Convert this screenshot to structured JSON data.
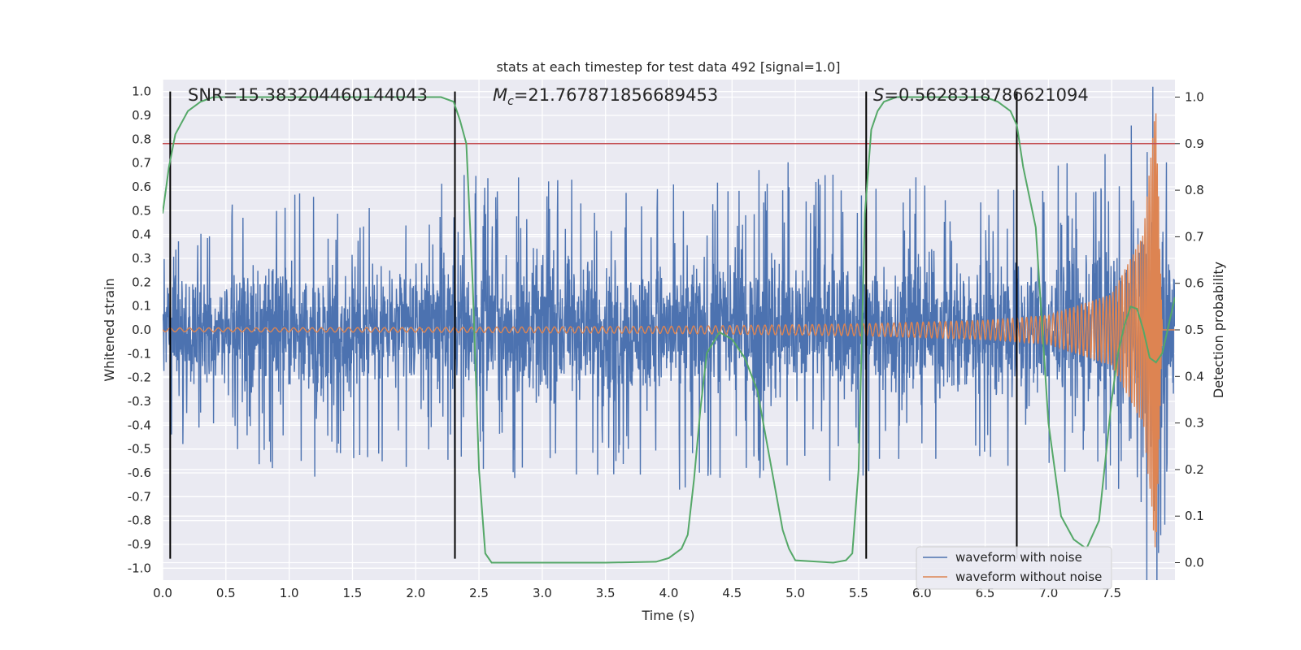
{
  "chart_data": {
    "type": "line",
    "title": "stats at each timestep for test data 492 [signal=1.0]",
    "xlabel": "Time (s)",
    "ylabel_left": "Whitened strain",
    "ylabel_right": "Detection probability",
    "xlim": [
      0.0,
      8.0
    ],
    "ylim_left": [
      -1.05,
      1.05
    ],
    "ylim_right": [
      -0.0375,
      1.0375
    ],
    "x_ticks": [
      "0.0",
      "0.5",
      "1.0",
      "1.5",
      "2.0",
      "2.5",
      "3.0",
      "3.5",
      "4.0",
      "4.5",
      "5.0",
      "5.5",
      "6.0",
      "6.5",
      "7.0",
      "7.5"
    ],
    "y_ticks_left": [
      "1.0",
      "0.9",
      "0.8",
      "0.7",
      "0.6",
      "0.5",
      "0.4",
      "0.3",
      "0.2",
      "0.1",
      "0.0",
      "-0.1",
      "-0.2",
      "-0.3",
      "-0.4",
      "-0.5",
      "-0.6",
      "-0.7",
      "-0.8",
      "-0.9",
      "-1.0"
    ],
    "y_ticks_right": [
      "1.0",
      "0.9",
      "0.8",
      "0.7",
      "0.6",
      "0.5",
      "0.4",
      "0.3",
      "0.2",
      "0.1",
      "0.0"
    ],
    "grid": true,
    "legend_position": "bottom-right",
    "annotations": {
      "snr": "SNR=15.383204460144043",
      "mc_symbol": "M",
      "mc_subscript": "c",
      "mc_value": "=21.767871856689453",
      "s_symbol": "S",
      "s_value": "=0.5628318786621094"
    },
    "threshold_right": 0.9,
    "vertical_markers_s": [
      0.06,
      2.31,
      5.56,
      6.75
    ],
    "series": [
      {
        "name": "waveform with noise",
        "color": "#4c72b0",
        "description": "noisy whitened strain, envelope approx",
        "envelope_upper": [
          [
            0.0,
            0.32
          ],
          [
            0.5,
            0.42
          ],
          [
            1.0,
            0.45
          ],
          [
            1.5,
            0.46
          ],
          [
            2.0,
            0.5
          ],
          [
            2.5,
            0.5
          ],
          [
            3.0,
            0.5
          ],
          [
            3.5,
            0.48
          ],
          [
            4.0,
            0.48
          ],
          [
            4.5,
            0.5
          ],
          [
            5.0,
            0.55
          ],
          [
            5.5,
            0.5
          ],
          [
            6.0,
            0.5
          ],
          [
            6.5,
            0.5
          ],
          [
            7.0,
            0.52
          ],
          [
            7.5,
            0.6
          ],
          [
            7.85,
            1.0
          ],
          [
            8.0,
            0.4
          ]
        ],
        "envelope_lower": [
          [
            0.0,
            -0.35
          ],
          [
            0.5,
            -0.42
          ],
          [
            1.0,
            -0.48
          ],
          [
            1.5,
            -0.5
          ],
          [
            2.0,
            -0.45
          ],
          [
            2.5,
            -0.45
          ],
          [
            3.0,
            -0.5
          ],
          [
            3.5,
            -0.47
          ],
          [
            4.0,
            -0.55
          ],
          [
            4.5,
            -0.5
          ],
          [
            5.0,
            -0.5
          ],
          [
            5.5,
            -0.48
          ],
          [
            6.0,
            -0.48
          ],
          [
            6.5,
            -0.45
          ],
          [
            7.0,
            -0.5
          ],
          [
            7.5,
            -0.55
          ],
          [
            7.85,
            -0.96
          ],
          [
            8.0,
            -0.35
          ]
        ]
      },
      {
        "name": "waveform without noise",
        "color": "#dd8452",
        "description": "chirp signal, amplitude grows toward merger near 7.85 s",
        "amplitude_envelope": [
          [
            0.0,
            0.008
          ],
          [
            2.0,
            0.01
          ],
          [
            4.0,
            0.015
          ],
          [
            5.5,
            0.025
          ],
          [
            6.5,
            0.04
          ],
          [
            7.0,
            0.06
          ],
          [
            7.5,
            0.15
          ],
          [
            7.75,
            0.4
          ],
          [
            7.85,
            0.95
          ],
          [
            7.9,
            0.0
          ],
          [
            8.0,
            0.0
          ]
        ]
      },
      {
        "name": "detection probability",
        "color": "#55a868",
        "axis": "right",
        "points": [
          [
            0.0,
            0.75
          ],
          [
            0.05,
            0.85
          ],
          [
            0.1,
            0.92
          ],
          [
            0.2,
            0.97
          ],
          [
            0.3,
            0.99
          ],
          [
            0.4,
            1.0
          ],
          [
            1.0,
            1.0
          ],
          [
            2.0,
            1.0
          ],
          [
            2.2,
            1.0
          ],
          [
            2.3,
            0.99
          ],
          [
            2.35,
            0.95
          ],
          [
            2.4,
            0.9
          ],
          [
            2.45,
            0.6
          ],
          [
            2.5,
            0.2
          ],
          [
            2.55,
            0.02
          ],
          [
            2.6,
            0.0
          ],
          [
            3.0,
            0.0
          ],
          [
            3.5,
            0.0
          ],
          [
            3.9,
            0.002
          ],
          [
            4.0,
            0.01
          ],
          [
            4.1,
            0.03
          ],
          [
            4.15,
            0.06
          ],
          [
            4.2,
            0.18
          ],
          [
            4.25,
            0.33
          ],
          [
            4.3,
            0.45
          ],
          [
            4.4,
            0.495
          ],
          [
            4.5,
            0.48
          ],
          [
            4.6,
            0.44
          ],
          [
            4.7,
            0.37
          ],
          [
            4.8,
            0.22
          ],
          [
            4.9,
            0.07
          ],
          [
            4.95,
            0.03
          ],
          [
            5.0,
            0.005
          ],
          [
            5.3,
            0.0
          ],
          [
            5.4,
            0.005
          ],
          [
            5.45,
            0.02
          ],
          [
            5.5,
            0.2
          ],
          [
            5.55,
            0.75
          ],
          [
            5.6,
            0.93
          ],
          [
            5.65,
            0.97
          ],
          [
            5.7,
            0.99
          ],
          [
            5.8,
            1.0
          ],
          [
            6.5,
            1.0
          ],
          [
            6.6,
            0.99
          ],
          [
            6.7,
            0.97
          ],
          [
            6.75,
            0.94
          ],
          [
            6.8,
            0.85
          ],
          [
            6.9,
            0.72
          ],
          [
            7.0,
            0.3
          ],
          [
            7.1,
            0.1
          ],
          [
            7.2,
            0.05
          ],
          [
            7.3,
            0.03
          ],
          [
            7.4,
            0.09
          ],
          [
            7.5,
            0.35
          ],
          [
            7.55,
            0.45
          ],
          [
            7.6,
            0.51
          ],
          [
            7.65,
            0.55
          ],
          [
            7.7,
            0.545
          ],
          [
            7.75,
            0.5
          ],
          [
            7.8,
            0.44
          ],
          [
            7.85,
            0.43
          ],
          [
            7.9,
            0.45
          ],
          [
            8.0,
            0.57
          ]
        ]
      }
    ]
  }
}
